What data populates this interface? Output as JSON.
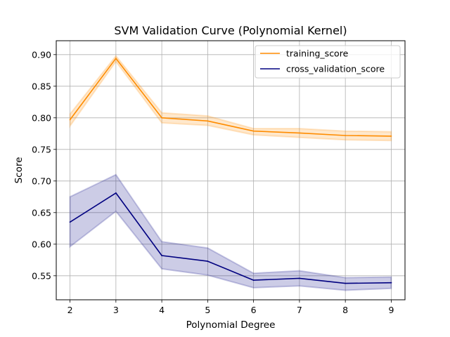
{
  "chart_data": {
    "type": "line",
    "title": "SVM Validation Curve (Polynomial Kernel)",
    "xlabel": "Polynomial Degree",
    "ylabel": "Score",
    "x": [
      2,
      3,
      4,
      5,
      6,
      7,
      8,
      9
    ],
    "xlim": [
      1.7,
      9.3
    ],
    "ylim": [
      0.512,
      0.922
    ],
    "xticks": [
      "2",
      "3",
      "4",
      "5",
      "6",
      "7",
      "8",
      "9"
    ],
    "yticks": [
      "0.55",
      "0.60",
      "0.65",
      "0.70",
      "0.75",
      "0.80",
      "0.85",
      "0.90"
    ],
    "grid": true,
    "legend_position": "upper right",
    "series": [
      {
        "name": "training_score",
        "color": "#ff8c00",
        "values": [
          0.797,
          0.894,
          0.8,
          0.795,
          0.779,
          0.776,
          0.772,
          0.771
        ],
        "band_lower": [
          0.787,
          0.889,
          0.792,
          0.788,
          0.773,
          0.769,
          0.765,
          0.764
        ],
        "band_upper": [
          0.806,
          0.898,
          0.808,
          0.803,
          0.783,
          0.783,
          0.779,
          0.778
        ]
      },
      {
        "name": "cross_validation_score",
        "color": "#000080",
        "values": [
          0.635,
          0.681,
          0.582,
          0.573,
          0.543,
          0.546,
          0.538,
          0.539
        ],
        "band_lower": [
          0.596,
          0.652,
          0.561,
          0.551,
          0.531,
          0.534,
          0.527,
          0.53
        ],
        "band_upper": [
          0.675,
          0.71,
          0.604,
          0.594,
          0.554,
          0.558,
          0.547,
          0.548
        ]
      }
    ]
  }
}
